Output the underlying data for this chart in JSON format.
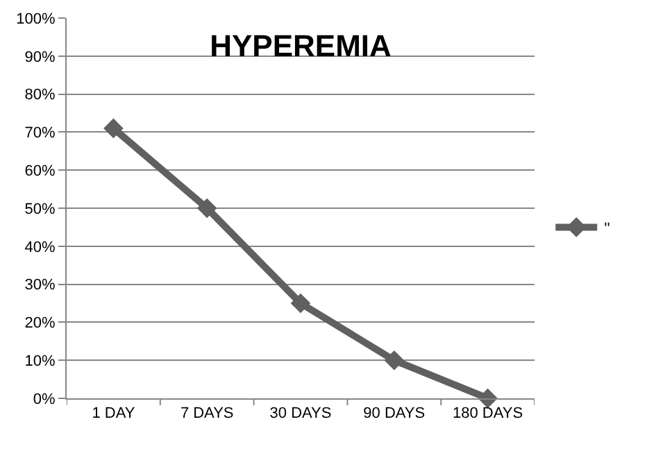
{
  "chart_data": {
    "type": "line",
    "title": "HYPEREMIA",
    "categories": [
      "1 DAY",
      "7 DAYS",
      "30 DAYS",
      "90 DAYS",
      "180 DAYS"
    ],
    "series": [
      {
        "name": "''",
        "color": "#606060",
        "values": [
          71,
          50,
          25,
          10,
          0
        ]
      }
    ],
    "ylim": [
      0,
      100
    ],
    "yticks": [
      {
        "value": 0,
        "label": "0%"
      },
      {
        "value": 10,
        "label": "10%"
      },
      {
        "value": 20,
        "label": "20%"
      },
      {
        "value": 30,
        "label": "30%"
      },
      {
        "value": 40,
        "label": "40%"
      },
      {
        "value": 50,
        "label": "50%"
      },
      {
        "value": 60,
        "label": "60%"
      },
      {
        "value": 70,
        "label": "70%"
      },
      {
        "value": 80,
        "label": "80%"
      },
      {
        "value": 90,
        "label": "90%"
      },
      {
        "value": 100,
        "label": "100%"
      }
    ],
    "grid": "y",
    "legend": "right",
    "marker": "diamond",
    "line_style": "solid"
  }
}
